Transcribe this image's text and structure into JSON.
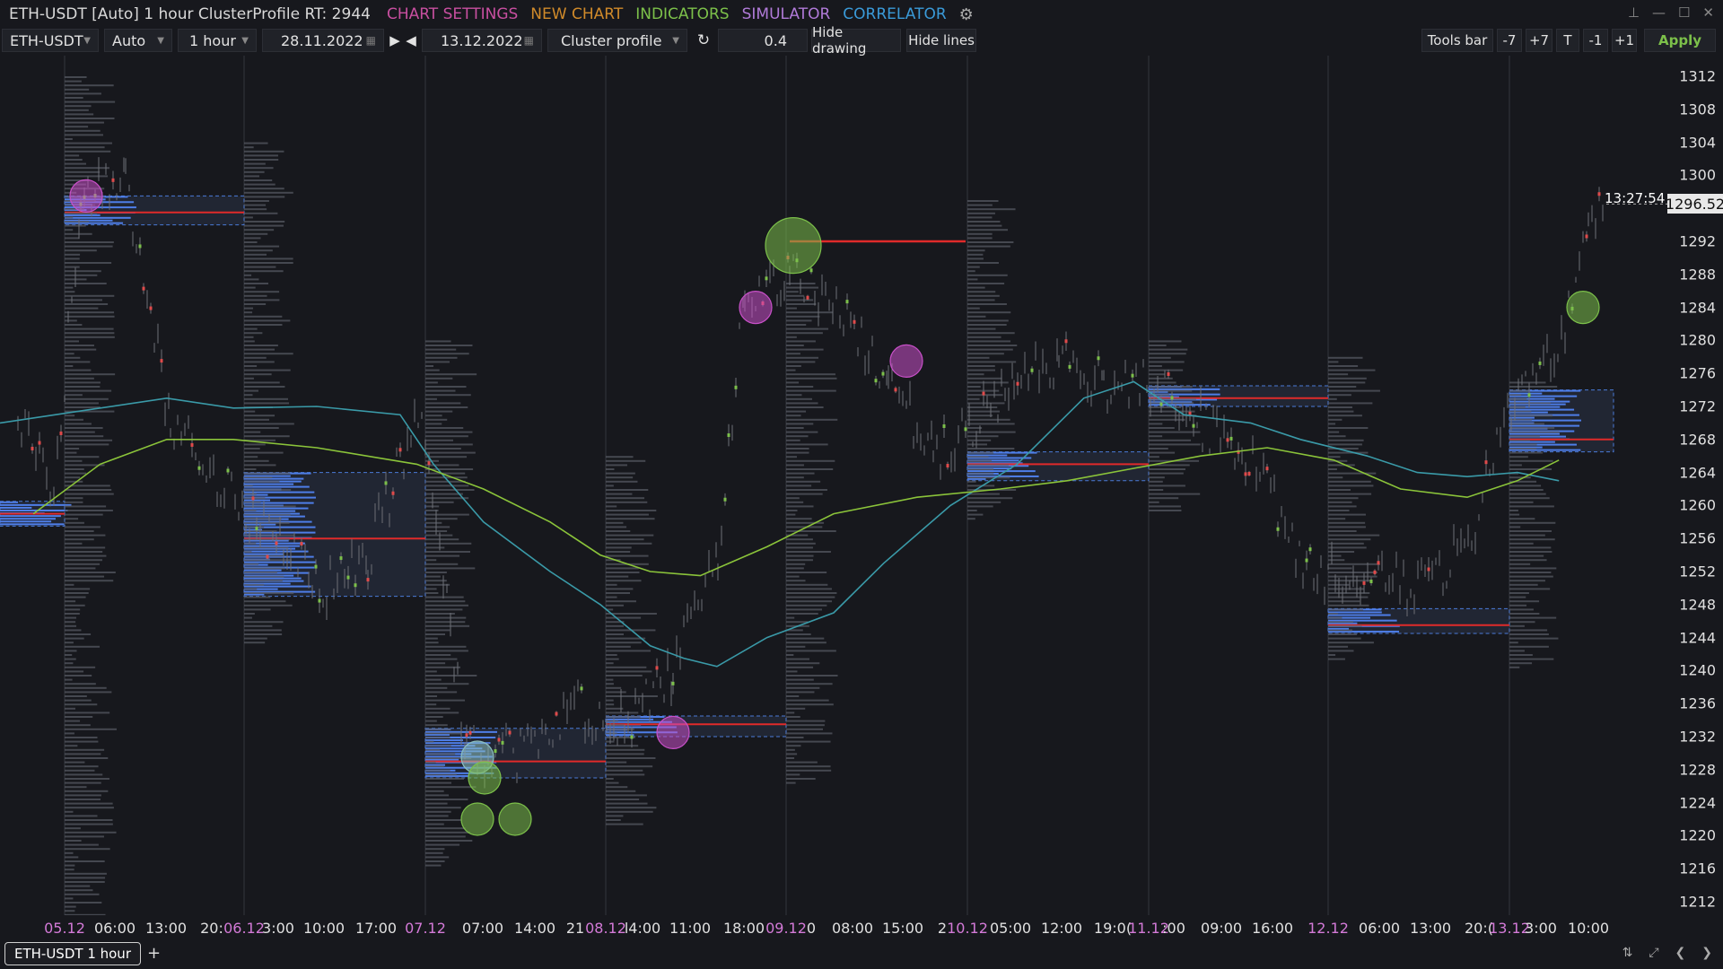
{
  "window": {
    "title": "ETH-USDT [Auto] 1 hour ClusterProfile RT: 2944",
    "menus": [
      {
        "label": "CHART SETTINGS",
        "color": "#c84fa0"
      },
      {
        "label": "NEW CHART",
        "color": "#d08a2a"
      },
      {
        "label": "INDICATORS",
        "color": "#7cc04a"
      },
      {
        "label": "SIMULATOR",
        "color": "#b07ad8"
      },
      {
        "label": "CORRELATOR",
        "color": "#3a9ad8"
      }
    ]
  },
  "toolbar": {
    "symbol": "ETH-USDT",
    "scale": "Auto",
    "timeframe": "1 hour",
    "date_from": "28.11.2022",
    "date_to": "13.12.2022",
    "template": "Cluster profile",
    "value": "0.4",
    "hide_drawing": "Hide drawing",
    "hide_lines": "Hide lines",
    "tools_bar": "Tools bar",
    "minus7": "-7",
    "plus7": "+7",
    "t_label": "T",
    "minus1": "-1",
    "plus1": "+1",
    "apply": "Apply",
    "apply_color": "#7cc04a"
  },
  "price_axis": {
    "labels": [
      "1312",
      "1308",
      "1304",
      "1300",
      "1296",
      "1292",
      "1288",
      "1284",
      "1280",
      "1276",
      "1272",
      "1268",
      "1264",
      "1260",
      "1256",
      "1252",
      "1248",
      "1244",
      "1240",
      "1236",
      "1232",
      "1228",
      "1224",
      "1220",
      "1216",
      "1212"
    ],
    "current_price": "1296.52",
    "current_time": "13:27:54"
  },
  "time_axis": {
    "labels": [
      {
        "t": "05.12",
        "date": true
      },
      {
        "t": "06:00",
        "date": false
      },
      {
        "t": "13:00",
        "date": false
      },
      {
        "t": "20:",
        "date": false
      },
      {
        "t": "06.12",
        "date": true
      },
      {
        "t": "3:00",
        "date": false
      },
      {
        "t": "10:00",
        "date": false
      },
      {
        "t": "17:00",
        "date": false
      },
      {
        "t": "07.12",
        "date": true
      },
      {
        "t": "07:00",
        "date": false
      },
      {
        "t": "14:00",
        "date": false
      },
      {
        "t": "21",
        "date": false
      },
      {
        "t": "08.12",
        "date": true
      },
      {
        "t": "l4:00",
        "date": false
      },
      {
        "t": "11:00",
        "date": false
      },
      {
        "t": "18:00",
        "date": false
      },
      {
        "t": "09.12",
        "date": true
      },
      {
        "t": "0",
        "date": false
      },
      {
        "t": "08:00",
        "date": false
      },
      {
        "t": "15:00",
        "date": false
      },
      {
        "t": "2",
        "date": false
      },
      {
        "t": "10.12",
        "date": true
      },
      {
        "t": "05:00",
        "date": false
      },
      {
        "t": "12:00",
        "date": false
      },
      {
        "t": "19:0(",
        "date": false
      },
      {
        "t": "11.12",
        "date": true
      },
      {
        "t": ":00",
        "date": false
      },
      {
        "t": "09:00",
        "date": false
      },
      {
        "t": "16:00",
        "date": false
      },
      {
        "t": "12.12",
        "date": true
      },
      {
        "t": "06:00",
        "date": false
      },
      {
        "t": "13:00",
        "date": false
      },
      {
        "t": "20:(",
        "date": false
      },
      {
        "t": "13.12",
        "date": true
      },
      {
        "t": "3:00",
        "date": false
      },
      {
        "t": "10:00",
        "date": false
      }
    ]
  },
  "chart_data": {
    "type": "cluster-profile",
    "symbol": "ETH-USDT",
    "timeframe": "1 hour",
    "ylim": [
      1210,
      1314
    ],
    "days": [
      "05.12",
      "06.12",
      "07.12",
      "08.12",
      "09.12",
      "10.12",
      "11.12",
      "12.12",
      "13.12"
    ],
    "value_areas": [
      {
        "day": "04.12",
        "high": 1260.5,
        "low": 1257.5,
        "poc": 1259
      },
      {
        "day": "05.12",
        "high": 1297.5,
        "low": 1294,
        "poc": 1295.5
      },
      {
        "day": "06.12",
        "high": 1264,
        "low": 1249,
        "poc": 1256
      },
      {
        "day": "07.12",
        "high": 1233,
        "low": 1227,
        "poc": 1229
      },
      {
        "day": "08.12",
        "high": 1234.5,
        "low": 1232,
        "poc": 1233.5
      },
      {
        "day": "10.12",
        "high": 1266.5,
        "low": 1263,
        "poc": 1265
      },
      {
        "day": "11.12",
        "high": 1274.5,
        "low": 1272,
        "poc": 1273
      },
      {
        "day": "12.12",
        "high": 1247.5,
        "low": 1244.5,
        "poc": 1245.5
      },
      {
        "day": "13.12",
        "high": 1274,
        "low": 1266.5,
        "poc": 1268
      }
    ],
    "big_trades": [
      {
        "time": "05.12 03:00",
        "price": 1297.5,
        "side": "sell"
      },
      {
        "time": "07.12 08:00",
        "price": 1229.5,
        "side": "buy-weak"
      },
      {
        "time": "07.12 09:00",
        "price": 1227,
        "side": "buy"
      },
      {
        "time": "07.12 08:00",
        "price": 1222,
        "side": "buy"
      },
      {
        "time": "07.12 13:00",
        "price": 1222,
        "side": "buy"
      },
      {
        "time": "08.12 09:00",
        "price": 1232.5,
        "side": "sell"
      },
      {
        "time": "09.12 02:00",
        "price": 1291.5,
        "side": "buy"
      },
      {
        "time": "08.12 21:00",
        "price": 1284,
        "side": "sell"
      },
      {
        "time": "09.12 16:00",
        "price": 1277.5,
        "side": "sell"
      },
      {
        "time": "13.12 10:00",
        "price": 1284,
        "side": "buy"
      }
    ],
    "series": [
      {
        "name": "MA fast",
        "color": "#3a9aa8",
        "points": [
          [
            0,
            1270
          ],
          [
            0.05,
            1271.5
          ],
          [
            0.1,
            1273
          ],
          [
            0.14,
            1271.8
          ],
          [
            0.19,
            1272
          ],
          [
            0.24,
            1271
          ],
          [
            0.26,
            1265
          ],
          [
            0.29,
            1258
          ],
          [
            0.33,
            1252
          ],
          [
            0.36,
            1248
          ],
          [
            0.39,
            1243
          ],
          [
            0.41,
            1241.5
          ],
          [
            0.43,
            1240.5
          ],
          [
            0.46,
            1244
          ],
          [
            0.5,
            1247
          ],
          [
            0.53,
            1253
          ],
          [
            0.57,
            1260
          ],
          [
            0.61,
            1265
          ],
          [
            0.65,
            1273
          ],
          [
            0.68,
            1275
          ],
          [
            0.71,
            1271
          ],
          [
            0.75,
            1270
          ],
          [
            0.78,
            1268
          ],
          [
            0.82,
            1266
          ],
          [
            0.85,
            1264
          ],
          [
            0.88,
            1263.5
          ],
          [
            0.91,
            1264
          ],
          [
            0.935,
            1263
          ]
        ]
      },
      {
        "name": "MA slow",
        "color": "#8bc43a",
        "points": [
          [
            0.02,
            1259
          ],
          [
            0.06,
            1265
          ],
          [
            0.1,
            1268
          ],
          [
            0.14,
            1268
          ],
          [
            0.19,
            1267
          ],
          [
            0.25,
            1265
          ],
          [
            0.29,
            1262
          ],
          [
            0.33,
            1258
          ],
          [
            0.36,
            1254
          ],
          [
            0.39,
            1252
          ],
          [
            0.42,
            1251.5
          ],
          [
            0.46,
            1255
          ],
          [
            0.5,
            1259
          ],
          [
            0.55,
            1261
          ],
          [
            0.6,
            1262
          ],
          [
            0.64,
            1263
          ],
          [
            0.68,
            1264.5
          ],
          [
            0.72,
            1266
          ],
          [
            0.76,
            1267
          ],
          [
            0.8,
            1265.5
          ],
          [
            0.84,
            1262
          ],
          [
            0.88,
            1261
          ],
          [
            0.91,
            1263
          ],
          [
            0.935,
            1265.5
          ]
        ]
      }
    ]
  }
}
